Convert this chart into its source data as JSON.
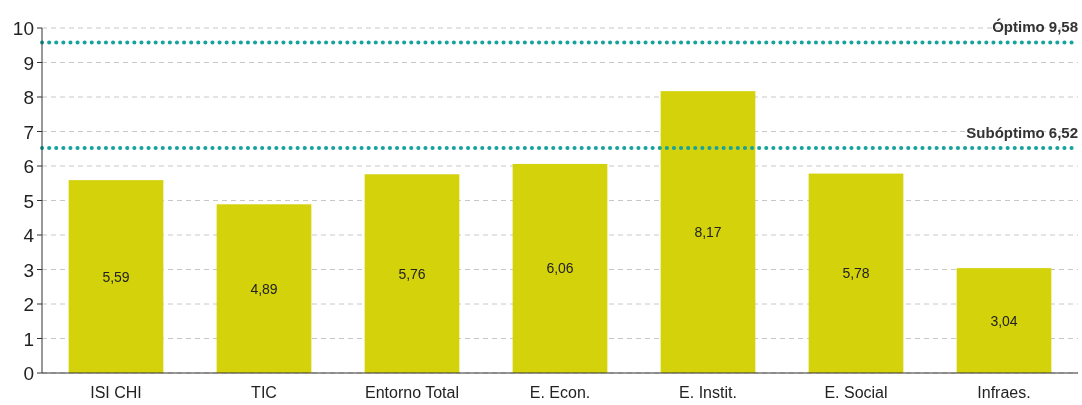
{
  "chart_data": {
    "type": "bar",
    "categories": [
      "ISI CHI",
      "TIC",
      "Entorno Total",
      "E. Econ.",
      "E. Instit.",
      "E. Social",
      "Infraes."
    ],
    "values": [
      5.59,
      4.89,
      5.76,
      6.06,
      8.17,
      5.78,
      3.04
    ],
    "value_labels": [
      "5,59",
      "4,89",
      "5,76",
      "6,06",
      "8,17",
      "5,78",
      "3,04"
    ],
    "color": "#d4d20b",
    "ylim": [
      0,
      10
    ],
    "yticks": [
      0,
      1,
      2,
      3,
      4,
      5,
      6,
      7,
      8,
      9,
      10
    ],
    "grid": "y",
    "ref_lines": [
      {
        "axis": "y",
        "value": 9.58,
        "label": "Óptimo 9,58",
        "color": "#16a39c",
        "line_style": "dotted"
      },
      {
        "axis": "y",
        "value": 6.52,
        "label": "Subóptimo 6,52",
        "color": "#16a39c",
        "line_style": "dotted"
      }
    ]
  }
}
